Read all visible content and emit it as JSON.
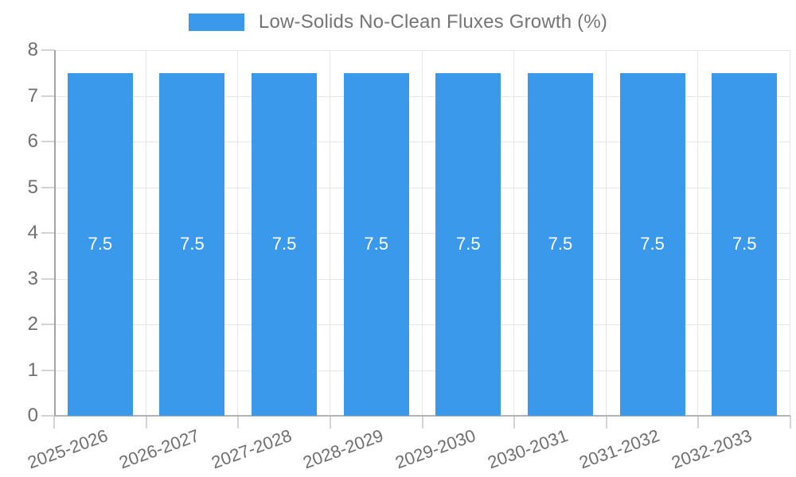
{
  "legend": {
    "label": "Low-Solids No-Clean Fluxes Growth (%)",
    "swatch_color": "#3b99ec"
  },
  "chart_data": {
    "type": "bar",
    "title": "Low-Solids No-Clean Fluxes Growth (%)",
    "categories": [
      "2025-2026",
      "2026-2027",
      "2027-2028",
      "2028-2029",
      "2029-2030",
      "2030-2031",
      "2031-2032",
      "2032-2033"
    ],
    "values": [
      7.5,
      7.5,
      7.5,
      7.5,
      7.5,
      7.5,
      7.5,
      7.5
    ],
    "bar_value_labels": [
      "7.5",
      "7.5",
      "7.5",
      "7.5",
      "7.5",
      "7.5",
      "7.5",
      "7.5"
    ],
    "xlabel": "",
    "ylabel": "",
    "ylim": [
      0,
      8
    ],
    "yticks": [
      0,
      1,
      2,
      3,
      4,
      5,
      6,
      7,
      8
    ],
    "grid": true,
    "legend_position": "top",
    "x_label_rotation_deg": -20,
    "colors": {
      "bar": "#3b99ec",
      "bar_label": "#ffffff",
      "gridline": "#e7e7e7",
      "axis_line": "#a8a8a8",
      "tick_mark": "#d4d4d4",
      "axis_text": "#6f6f6f",
      "legend_text": "#757575",
      "background": "#ffffff"
    }
  }
}
